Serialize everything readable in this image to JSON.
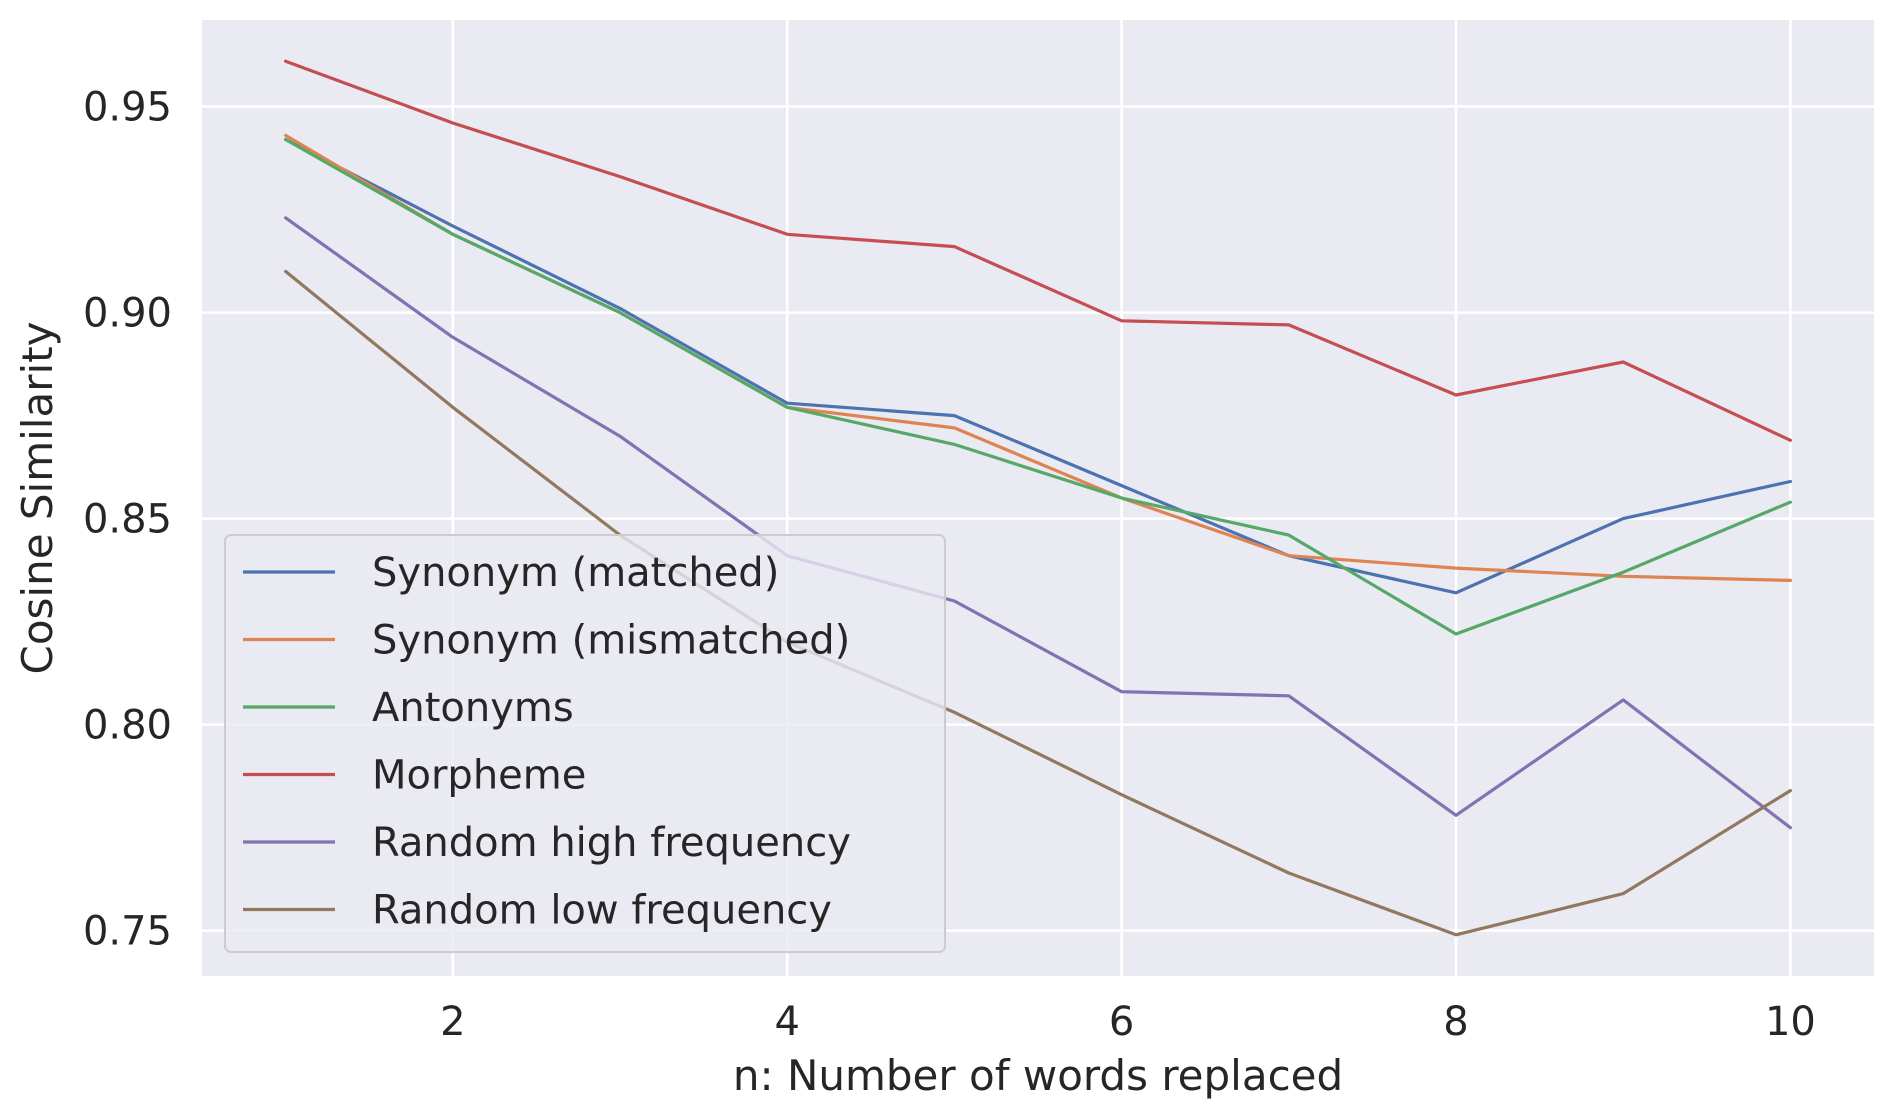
{
  "chart_data": {
    "type": "line",
    "title": "",
    "xlabel": "n: Number of words replaced",
    "ylabel": "Cosine Similarity",
    "xlim": [
      0.5,
      10.5
    ],
    "ylim": [
      0.739,
      0.971
    ],
    "xticks": [
      2,
      4,
      6,
      8,
      10
    ],
    "yticks": [
      0.75,
      0.8,
      0.85,
      0.9,
      0.95
    ],
    "grid": true,
    "background": "#eaeaf2",
    "legend_position": "lower-left",
    "x": [
      1,
      2,
      3,
      4,
      5,
      6,
      7,
      8,
      9,
      10
    ],
    "series": [
      {
        "name": "Synonym (matched)",
        "color": "#4c72b0",
        "values": [
          0.942,
          0.921,
          0.901,
          0.878,
          0.875,
          0.858,
          0.841,
          0.832,
          0.85,
          0.859
        ]
      },
      {
        "name": "Synonym (mismatched)",
        "color": "#dd8452",
        "values": [
          0.943,
          0.919,
          0.9,
          0.877,
          0.872,
          0.855,
          0.841,
          0.838,
          0.836,
          0.835
        ]
      },
      {
        "name": "Antonyms",
        "color": "#55a868",
        "values": [
          0.942,
          0.919,
          0.9,
          0.877,
          0.868,
          0.855,
          0.846,
          0.822,
          0.837,
          0.854
        ]
      },
      {
        "name": "Morpheme",
        "color": "#c44e52",
        "values": [
          0.961,
          0.946,
          0.933,
          0.919,
          0.916,
          0.898,
          0.897,
          0.88,
          0.888,
          0.869
        ]
      },
      {
        "name": "Random high frequency",
        "color": "#8172b3",
        "values": [
          0.923,
          0.894,
          0.87,
          0.841,
          0.83,
          0.808,
          0.807,
          0.778,
          0.806,
          0.775
        ]
      },
      {
        "name": "Random low frequency",
        "color": "#937860",
        "values": [
          0.91,
          0.877,
          0.846,
          0.82,
          0.803,
          0.783,
          0.764,
          0.749,
          0.759,
          0.784
        ]
      }
    ]
  }
}
